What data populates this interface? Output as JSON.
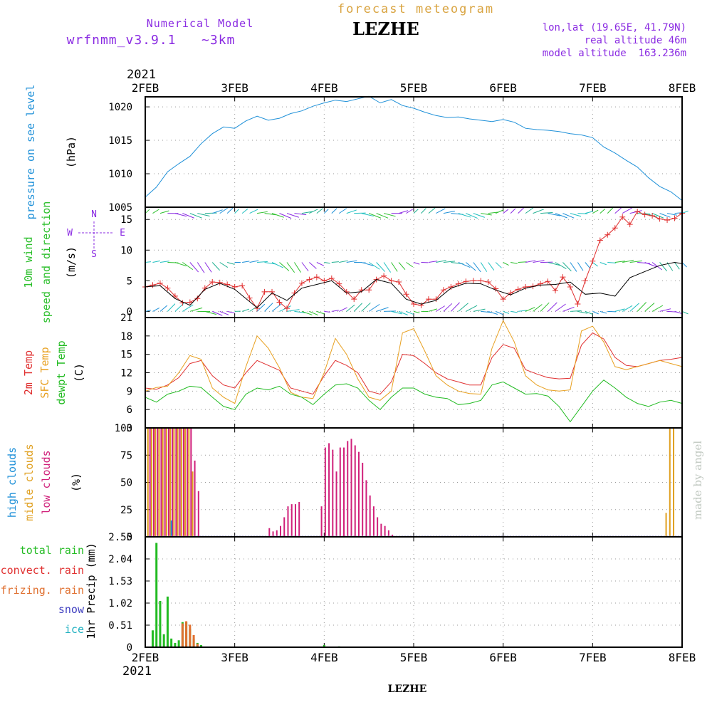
{
  "header": {
    "title": "forecast meteogram",
    "location": "LEZHE",
    "footer_location": "LEZHE",
    "model_label": "Numerical Model",
    "model_name": "wrfnmm_v3.9.1   ~3km",
    "lonlat": "lon,lat (19.65E, 41.79N)",
    "real_altitude": "real altitude 46m",
    "model_altitude": "model altitude  163.236m",
    "credit": "made by angel",
    "year_top": "2021",
    "year_bottom": "2021"
  },
  "colors": {
    "title": "#d9a441",
    "purple": "#8a2be2",
    "pressure": "#1e90d8",
    "wind_label": "#2ec02e",
    "wind_speed": "#e03030",
    "wind_gust_line": "#000000",
    "t2m": "#e03030",
    "tsfc": "#e8a020",
    "dewpt": "#22bb22",
    "high_clouds": "#1e90d8",
    "mid_clouds": "#e0a020",
    "low_clouds": "#d0207a",
    "total_rain": "#22bb22",
    "convect_rain": "#e03030",
    "frizing_rain": "#e07030",
    "snow": "#4040c0",
    "ice": "#20b0c0",
    "credit": "#c0c8c0"
  },
  "chart_data": [
    {
      "type": "line",
      "panel": "pressure",
      "x_ticks": [
        "2FEB",
        "3FEB",
        "4FEB",
        "5FEB",
        "6FEB",
        "7FEB",
        "8FEB"
      ],
      "ylabel_lines": [
        "pressure on see level",
        "(hPa)"
      ],
      "y_ticks": [
        1005,
        1010,
        1015,
        1020
      ],
      "ylim": [
        1005,
        1021.5
      ],
      "x_range_hours": [
        0,
        144
      ],
      "series": [
        {
          "color_key": "pressure",
          "x": [
            0,
            3,
            6,
            9,
            12,
            15,
            18,
            21,
            24,
            27,
            30,
            33,
            36,
            39,
            42,
            45,
            48,
            51,
            54,
            57,
            60,
            63,
            66,
            69,
            72,
            75,
            78,
            81,
            84,
            87,
            90,
            93,
            96,
            99,
            102,
            105,
            108,
            111,
            114,
            117,
            120,
            123,
            126,
            129,
            132,
            135,
            138,
            141,
            144
          ],
          "values": [
            1006.5,
            1008.0,
            1010.3,
            1011.5,
            1012.6,
            1014.5,
            1016.0,
            1017.0,
            1016.8,
            1017.9,
            1018.6,
            1018.0,
            1018.3,
            1019.0,
            1019.4,
            1020.1,
            1020.6,
            1021.0,
            1020.8,
            1021.2,
            1021.6,
            1020.6,
            1021.1,
            1020.2,
            1019.8,
            1019.2,
            1018.7,
            1018.4,
            1018.5,
            1018.2,
            1018.0,
            1017.8,
            1018.1,
            1017.7,
            1016.8,
            1016.6,
            1016.5,
            1016.3,
            1016.0,
            1015.8,
            1015.4,
            1014.0,
            1013.1,
            1012.0,
            1011.0,
            1009.4,
            1008.1,
            1007.3,
            1006.0
          ]
        }
      ]
    },
    {
      "type": "line",
      "panel": "wind",
      "ylabel_lines": [
        "10m wind",
        "speed and direction",
        "(m/s)"
      ],
      "compass": {
        "n": "N",
        "s": "S",
        "e": "E",
        "w": "W"
      },
      "y_ticks": [
        0,
        5,
        10,
        15
      ],
      "ylim": [
        -1,
        17
      ],
      "barb_rows": [
        0,
        8,
        16
      ],
      "x_range_hours": [
        0,
        144
      ],
      "series": [
        {
          "name": "speed",
          "color_key": "wind_speed",
          "x": [
            0,
            2,
            4,
            6,
            8,
            10,
            12,
            14,
            16,
            18,
            20,
            22,
            24,
            26,
            28,
            30,
            32,
            34,
            36,
            38,
            40,
            42,
            44,
            46,
            48,
            50,
            52,
            54,
            56,
            58,
            60,
            62,
            64,
            66,
            68,
            70,
            72,
            74,
            76,
            78,
            80,
            82,
            84,
            86,
            88,
            90,
            92,
            94,
            96,
            98,
            100,
            102,
            104,
            106,
            108,
            110,
            112,
            114,
            116,
            118,
            120,
            122,
            124,
            126,
            128,
            130,
            132,
            134,
            136,
            138,
            140,
            142,
            144
          ],
          "values": [
            4.0,
            4.3,
            4.6,
            3.8,
            2.5,
            1.4,
            1.5,
            2.1,
            3.8,
            4.8,
            4.7,
            4.4,
            4.0,
            4.2,
            2.2,
            0.5,
            3.2,
            3.2,
            1.5,
            0.5,
            3.0,
            4.6,
            5.2,
            5.6,
            5.0,
            5.4,
            4.5,
            3.2,
            2.0,
            3.5,
            3.5,
            5.2,
            5.8,
            5.0,
            4.8,
            2.8,
            1.2,
            1.0,
            2.0,
            2.0,
            3.5,
            4.0,
            4.5,
            4.9,
            5.0,
            5.0,
            4.8,
            3.7,
            2.0,
            3.0,
            3.6,
            4.0,
            4.1,
            4.5,
            4.9,
            3.4,
            5.6,
            4.0,
            1.2,
            5.0,
            8.2,
            11.6,
            12.5,
            13.6,
            15.4,
            14.2,
            16.3,
            15.8,
            15.6,
            15.1,
            14.9,
            15.2,
            16.0
          ]
        },
        {
          "name": "black",
          "color_key": "wind_gust_line",
          "x": [
            0,
            4,
            8,
            12,
            16,
            20,
            24,
            28,
            30,
            34,
            38,
            42,
            46,
            50,
            54,
            58,
            62,
            66,
            70,
            74,
            78,
            82,
            86,
            90,
            94,
            98,
            102,
            106,
            110,
            114,
            118,
            122,
            126,
            130,
            134,
            138,
            142,
            144
          ],
          "values": [
            4.0,
            4.2,
            2.1,
            1.0,
            3.6,
            4.6,
            3.6,
            1.6,
            0.6,
            3.0,
            1.8,
            3.8,
            4.4,
            5.0,
            3.0,
            3.2,
            5.2,
            4.6,
            2.0,
            1.2,
            1.8,
            3.8,
            4.6,
            4.5,
            3.5,
            2.7,
            3.8,
            4.3,
            4.4,
            4.8,
            2.8,
            3.0,
            2.5,
            5.5,
            6.5,
            7.5,
            8.0,
            7.8
          ]
        }
      ]
    },
    {
      "type": "line",
      "panel": "temperature",
      "ylabel_lines": [
        "2m Temp",
        "SFC Temp",
        "dewpt Temp",
        "(C)"
      ],
      "y_ticks": [
        3,
        6,
        9,
        12,
        15,
        18,
        21
      ],
      "ylim": [
        3,
        21
      ],
      "x_range_hours": [
        0,
        144
      ],
      "series": [
        {
          "color_key": "t2m",
          "x": [
            0,
            3,
            6,
            9,
            12,
            15,
            18,
            21,
            24,
            27,
            30,
            33,
            36,
            39,
            42,
            45,
            48,
            51,
            54,
            57,
            60,
            63,
            66,
            69,
            72,
            75,
            78,
            81,
            84,
            87,
            90,
            93,
            96,
            99,
            102,
            105,
            108,
            111,
            114,
            117,
            120,
            123,
            126,
            129,
            132,
            135,
            138,
            141,
            144
          ],
          "values": [
            9.5,
            9.3,
            10.0,
            11.2,
            13.5,
            14.0,
            11.5,
            10.0,
            9.5,
            12.0,
            14.0,
            13.2,
            12.4,
            9.5,
            9.0,
            8.5,
            11.5,
            14.0,
            13.2,
            12.0,
            9.0,
            8.5,
            10.5,
            15.0,
            14.8,
            13.5,
            12.0,
            11.0,
            10.5,
            10.0,
            10.0,
            14.5,
            16.6,
            16.0,
            12.5,
            11.8,
            11.2,
            11.0,
            11.1,
            16.5,
            18.5,
            17.5,
            14.5,
            13.2,
            13.0,
            13.5,
            14.0,
            14.2,
            14.5
          ]
        },
        {
          "color_key": "tsfc",
          "x": [
            0,
            3,
            6,
            9,
            12,
            15,
            18,
            21,
            24,
            27,
            30,
            33,
            36,
            39,
            42,
            45,
            48,
            51,
            54,
            57,
            60,
            63,
            66,
            69,
            72,
            75,
            78,
            81,
            84,
            87,
            90,
            93,
            96,
            99,
            102,
            105,
            108,
            111,
            114,
            117,
            120,
            123,
            126,
            129,
            132,
            135,
            138,
            141,
            144
          ],
          "values": [
            9.0,
            9.6,
            9.8,
            12.0,
            14.8,
            14.2,
            9.5,
            8.0,
            7.0,
            13.0,
            18.0,
            16.0,
            12.8,
            8.8,
            8.0,
            7.8,
            12.0,
            17.6,
            15.0,
            11.0,
            8.0,
            7.5,
            9.0,
            18.5,
            19.2,
            15.5,
            11.5,
            10.0,
            9.0,
            8.6,
            8.5,
            16.0,
            20.5,
            17.0,
            11.5,
            10.0,
            9.2,
            9.0,
            9.2,
            18.8,
            19.6,
            17.0,
            13.0,
            12.5,
            13.0,
            13.5,
            14.0,
            13.5,
            13.0
          ]
        },
        {
          "color_key": "dewpt",
          "x": [
            0,
            3,
            6,
            9,
            12,
            15,
            18,
            21,
            24,
            27,
            30,
            33,
            36,
            39,
            42,
            45,
            48,
            51,
            54,
            57,
            60,
            63,
            66,
            69,
            72,
            75,
            78,
            81,
            84,
            87,
            90,
            93,
            96,
            99,
            102,
            105,
            108,
            111,
            114,
            117,
            120,
            123,
            126,
            129,
            132,
            135,
            138,
            141,
            144
          ],
          "values": [
            8.0,
            7.2,
            8.5,
            9.0,
            9.8,
            9.6,
            8.0,
            6.5,
            6.0,
            8.5,
            9.5,
            9.2,
            9.8,
            8.5,
            8.0,
            6.8,
            8.5,
            10.0,
            10.2,
            9.5,
            7.5,
            6.0,
            8.0,
            9.5,
            9.5,
            8.5,
            8.0,
            7.8,
            6.8,
            7.0,
            7.5,
            10.0,
            10.5,
            9.5,
            8.5,
            8.6,
            8.2,
            6.5,
            4.0,
            6.5,
            9.0,
            10.8,
            9.5,
            8.0,
            7.0,
            6.5,
            7.2,
            7.5,
            7.0
          ]
        }
      ]
    },
    {
      "type": "bar",
      "panel": "clouds",
      "ylabel_lines": [
        "high   clouds",
        "midle clouds",
        "low    clouds",
        "(%)"
      ],
      "y_ticks": [
        0,
        25,
        50,
        75,
        100
      ],
      "ylim": [
        0,
        100
      ],
      "x_range_hours": [
        0,
        144
      ],
      "bars_low": {
        "color_key": "low_clouds",
        "x": [
          1,
          2,
          3,
          4,
          5,
          6,
          7,
          8,
          9,
          10,
          11,
          12,
          13,
          14,
          33,
          34,
          35,
          36,
          37,
          38,
          39,
          40,
          41,
          47,
          48,
          49,
          50,
          51,
          52,
          53,
          54,
          55,
          56,
          57,
          58,
          59,
          60,
          61,
          62,
          63,
          64,
          65,
          66
        ],
        "values": [
          100,
          100,
          100,
          100,
          100,
          100,
          100,
          100,
          100,
          100,
          100,
          100,
          70,
          42,
          8,
          5,
          6,
          10,
          18,
          28,
          30,
          30,
          32,
          28,
          82,
          86,
          80,
          60,
          82,
          82,
          88,
          90,
          84,
          78,
          68,
          52,
          38,
          28,
          18,
          12,
          10,
          6,
          2
        ]
      },
      "bars_mid": {
        "color_key": "mid_clouds",
        "x": [
          1,
          2,
          3,
          4,
          5,
          6,
          7,
          8,
          9,
          10,
          11,
          12,
          13,
          140,
          141,
          142
        ],
        "values": [
          100,
          100,
          100,
          100,
          100,
          100,
          100,
          100,
          100,
          100,
          100,
          100,
          60,
          22,
          100,
          100
        ]
      },
      "bars_high": {
        "color_key": "high_clouds",
        "x": [
          7
        ],
        "values": [
          15
        ]
      }
    },
    {
      "type": "bar",
      "panel": "precip",
      "ylabel": "1hr Precip (mm)",
      "legend": [
        "total    rain",
        "convect. rain",
        "frizing. rain",
        "snow",
        "ice"
      ],
      "y_ticks": [
        "0",
        "0.51",
        "1.02",
        "1.53",
        "2.04",
        "2.55"
      ],
      "ylim": [
        0,
        2.55
      ],
      "x_range_hours": [
        0,
        144
      ],
      "bars_total": {
        "color_key": "total_rain",
        "x": [
          2,
          3,
          4,
          5,
          6,
          7,
          8,
          9,
          10,
          11,
          12,
          13,
          14,
          15,
          48,
          52
        ],
        "values": [
          0.39,
          2.41,
          1.07,
          0.3,
          1.17,
          0.2,
          0.1,
          0.16,
          0.58,
          0.58,
          0.42,
          0.2,
          0.1,
          0.05,
          0.05,
          0.02
        ]
      },
      "bars_convect": {
        "color_key": "frizing_rain",
        "x": [
          10,
          11,
          12,
          13,
          14
        ],
        "values": [
          0.55,
          0.6,
          0.52,
          0.28,
          0.08
        ]
      }
    }
  ]
}
